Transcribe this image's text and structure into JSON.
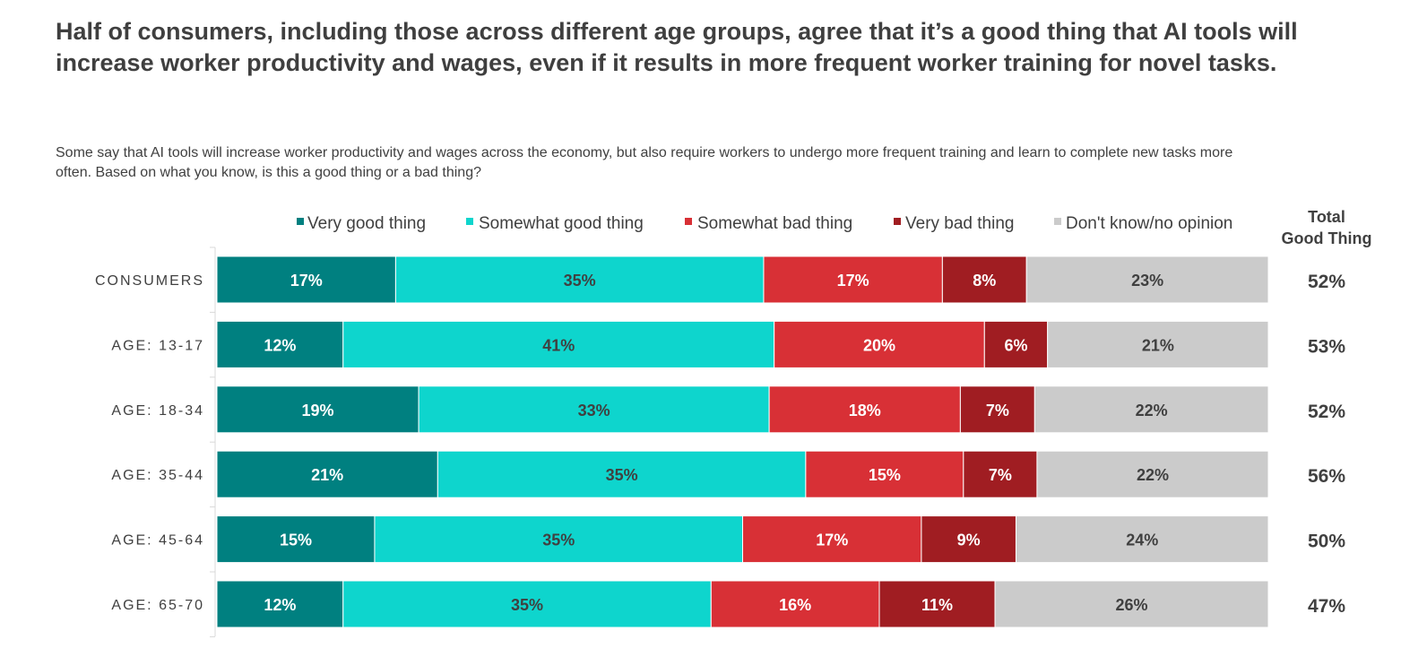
{
  "header": {
    "title": "Half of consumers, including those across different age groups, agree that it’s a good thing that AI tools will increase worker productivity and wages, even if it results in more frequent worker training for novel tasks.",
    "subtitle": "Some say that AI tools will increase worker productivity and wages across the economy, but also require workers to undergo more frequent training and learn to complete new tasks more often. Based on what you know, is this a good thing or a bad thing?"
  },
  "chart_data": {
    "type": "bar",
    "orientation": "horizontal",
    "stacked": true,
    "title": "Half of consumers, including those across different age groups, agree that it’s a good thing that AI tools will increase worker productivity and wages, even if it results in more frequent worker training for novel tasks.",
    "xlabel": "",
    "ylabel": "",
    "xlim": [
      0,
      100
    ],
    "legend_position": "top",
    "categories": [
      "CONSUMERS",
      "AGE: 13-17",
      "AGE: 18-34",
      "AGE: 35-44",
      "AGE: 45-64",
      "AGE: 65-70"
    ],
    "series": [
      {
        "name": "Very good thing",
        "color": "#008080",
        "label_color": "#ffffff",
        "values": [
          17,
          12,
          19,
          21,
          15,
          12
        ]
      },
      {
        "name": "Somewhat good thing",
        "color": "#0ed5cd",
        "label_color": "#404040",
        "values": [
          35,
          41,
          33,
          35,
          35,
          35
        ]
      },
      {
        "name": "Somewhat bad thing",
        "color": "#d83036",
        "label_color": "#ffffff",
        "values": [
          17,
          20,
          18,
          15,
          17,
          16
        ]
      },
      {
        "name": "Very bad thing",
        "color": "#a01d22",
        "label_color": "#ffffff",
        "values": [
          8,
          6,
          7,
          7,
          9,
          11
        ]
      },
      {
        "name": "Don't know/no opinion",
        "color": "#cbcbcb",
        "label_color": "#404040",
        "values": [
          23,
          21,
          22,
          22,
          24,
          26
        ]
      }
    ],
    "total_column": {
      "header_line1": "Total",
      "header_line2": "Good Thing",
      "values": [
        "52%",
        "53%",
        "52%",
        "56%",
        "50%",
        "47%"
      ]
    }
  }
}
